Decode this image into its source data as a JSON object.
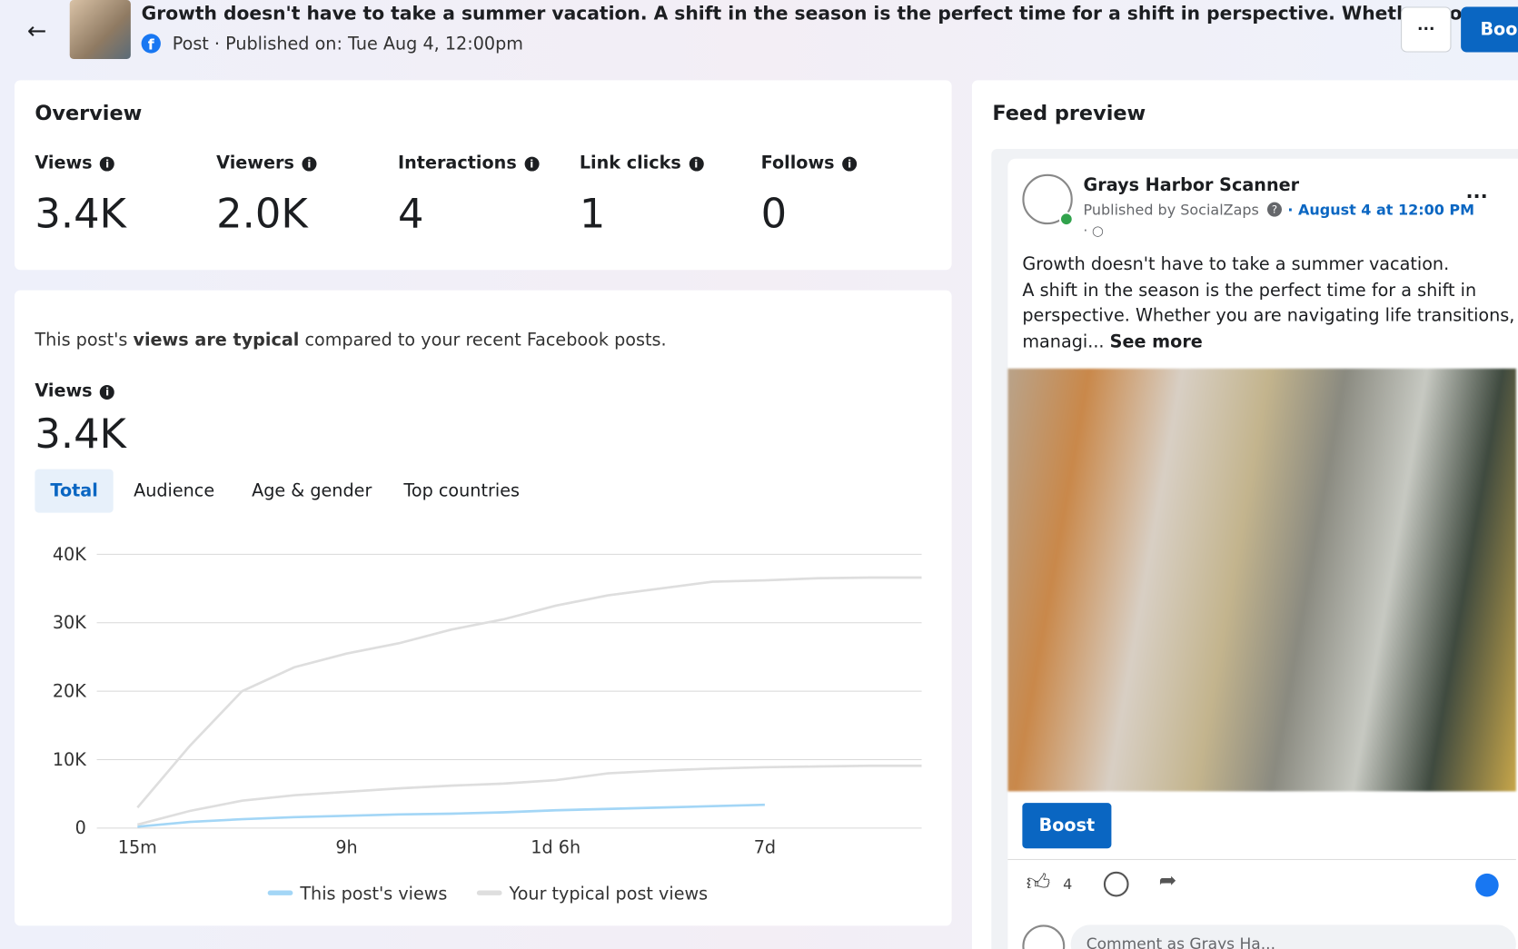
{
  "header": {
    "title": "Growth doesn't have to take a summer vacation. A shift in the season is the perfect time for a shift in perspective. Whether you are...",
    "subtitle": "Post · Published on: Tue Aug 4, 12:00pm",
    "more": "···",
    "boost": "Boost"
  },
  "overview": {
    "title": "Overview",
    "metrics": [
      {
        "label": "Views",
        "value": "3.4K"
      },
      {
        "label": "Viewers",
        "value": "2.0K"
      },
      {
        "label": "Interactions",
        "value": "4"
      },
      {
        "label": "Link clicks",
        "value": "1"
      },
      {
        "label": "Follows",
        "value": "0"
      }
    ]
  },
  "comparison": {
    "text_before": "This post's ",
    "text_bold": "views are typical",
    "text_after": " compared to your recent Facebook posts.",
    "metric_label": "Views",
    "metric_value": "3.4K",
    "tabs": [
      "Total",
      "Audience",
      "Age & gender",
      "Top countries"
    ]
  },
  "chart_data": {
    "type": "line",
    "categories": [
      "15m",
      null,
      null,
      null,
      "9h",
      null,
      null,
      null,
      "1d 6h",
      null,
      null,
      null,
      "7d",
      null,
      null,
      null
    ],
    "series": [
      {
        "name": "This post's views",
        "color": "#a3d6f6",
        "values": [
          200,
          900,
          1300,
          1600,
          1800,
          2000,
          2100,
          2300,
          2600,
          2800,
          3000,
          3200,
          3400,
          null,
          null,
          null
        ]
      },
      {
        "name": "Your typical post views",
        "color": "#dedede",
        "values": [
          3000,
          12000,
          20000,
          23500,
          25500,
          27000,
          29000,
          30500,
          32500,
          34000,
          35000,
          36000,
          36200,
          36500,
          36600,
          36600
        ],
        "low_values": [
          500,
          2500,
          4000,
          4800,
          5300,
          5800,
          6200,
          6500,
          7000,
          8000,
          8400,
          8700,
          8900,
          9000,
          9100,
          9100
        ]
      }
    ],
    "ylim": [
      0,
      40000
    ],
    "yticks": [
      0,
      {
        "value": 10000,
        "label": "10K"
      },
      {
        "value": 20000,
        "label": "20K"
      },
      {
        "value": 30000,
        "label": "30K"
      },
      {
        "value": 40000,
        "label": "40K"
      }
    ],
    "grid": true,
    "legend": "bottom"
  },
  "feed": {
    "title": "Feed preview",
    "page_name": "Grays Harbor Scanner",
    "published_by": "Published by SocialZaps",
    "date": "· August 4 at 12:00 PM",
    "text_lines": [
      "Growth doesn't have to take a summer vacation.",
      "A shift in the season is the perfect time for a shift in",
      "perspective. Whether you are navigating life transitions,",
      "managi..."
    ],
    "see_more": "See more",
    "boost": "Boost",
    "likes": "4",
    "comment_placeholder": "Comment as Grays Ha..."
  }
}
